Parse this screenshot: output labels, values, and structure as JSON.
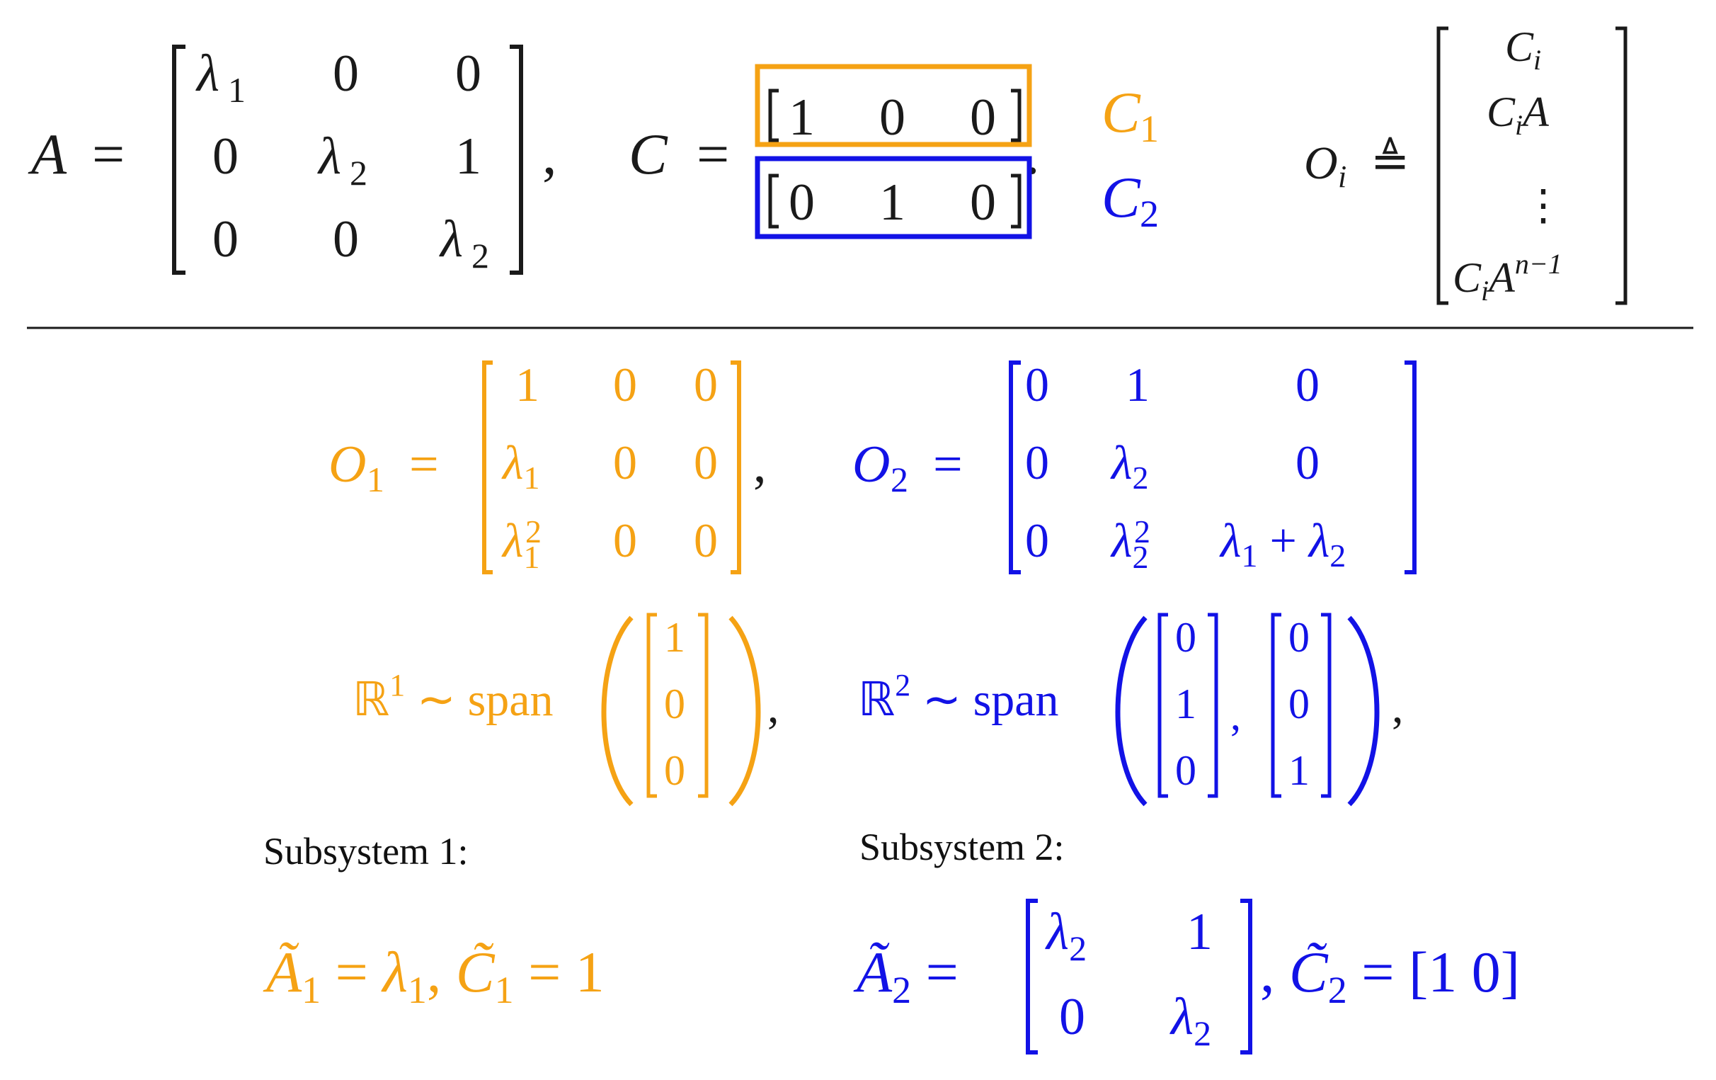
{
  "colors": {
    "black": "#1a1a1a",
    "orange": "#f5a214",
    "blue": "#1212e6"
  },
  "top": {
    "A_label": "A",
    "eq": "=",
    "A_matrix": [
      [
        "λ1",
        "0",
        "0"
      ],
      [
        "0",
        "λ2",
        "1"
      ],
      [
        "0",
        "0",
        "λ2"
      ]
    ],
    "comma": ",",
    "C_label": "C",
    "C_row1": [
      "1",
      "0",
      "0"
    ],
    "C_row2": [
      "0",
      "1",
      "0"
    ],
    "period": ".",
    "C1_label": "C1",
    "C2_label": "C2",
    "Oi_label": "Oi",
    "defeq": "≜",
    "Oi_rows": [
      "Ci",
      "CiA",
      "⋮",
      "CiAn−1"
    ]
  },
  "middle": {
    "O1_label": "O1",
    "O1_matrix": [
      [
        "1",
        "0",
        "0"
      ],
      [
        "λ1",
        "0",
        "0"
      ],
      [
        "λ1²",
        "0",
        "0"
      ]
    ],
    "O2_label": "O2",
    "O2_matrix": [
      [
        "0",
        "1",
        "0"
      ],
      [
        "0",
        "λ2",
        "0"
      ],
      [
        "0",
        "λ2²",
        "λ1 + λ2"
      ]
    ],
    "R1": "ℝ1 ∼ span",
    "R1_vector": [
      "1",
      "0",
      "0"
    ],
    "R2": "ℝ2 ∼ span",
    "R2_vector_a": [
      "0",
      "1",
      "0"
    ],
    "R2_vector_b": [
      "0",
      "0",
      "1"
    ]
  },
  "subsystems": {
    "s1_heading": "Subsystem 1:",
    "s2_heading": "Subsystem 2:",
    "s1_eq": "Ã1 = λ1, C̃1 = 1",
    "s2_A": "Ã2 =",
    "s2_matrix": [
      [
        "λ2",
        "1"
      ],
      [
        "0",
        "λ2"
      ]
    ],
    "s2_C": "C̃2 = [1   0]"
  }
}
